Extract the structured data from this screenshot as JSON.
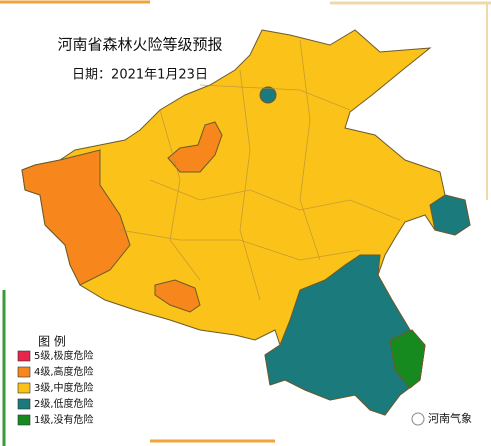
{
  "header": {
    "title": "河南省森林火险等级预报",
    "date": "日期：2021年1月23日"
  },
  "legend": {
    "title": "图 例",
    "items": [
      {
        "label": "5级,极度危险",
        "color": "#e8254a"
      },
      {
        "label": "4级,高度危险",
        "color": "#f7861d"
      },
      {
        "label": "3级,中度危险",
        "color": "#fbc21a"
      },
      {
        "label": "2级,低度危险",
        "color": "#1a7a7c"
      },
      {
        "label": "1级,没有危险",
        "color": "#168a1f"
      }
    ]
  },
  "watermark": "河南气象"
}
